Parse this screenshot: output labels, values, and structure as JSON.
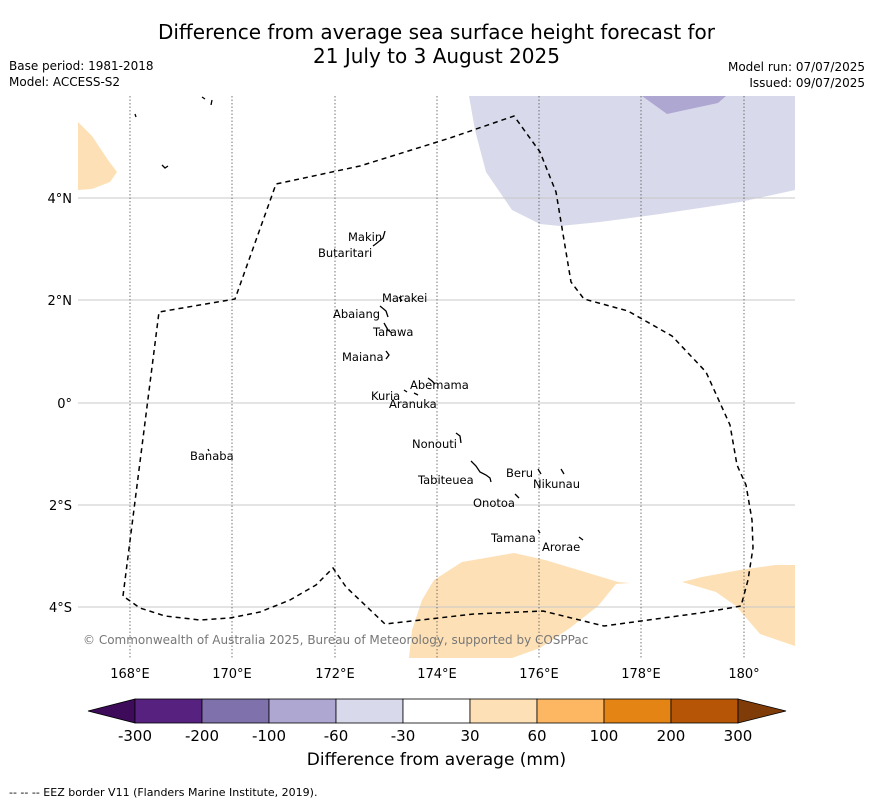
{
  "header": {
    "title_line1": "Difference from average sea surface height forecast for",
    "title_line2": "21 July to 3 August 2025",
    "base_period": "Base period: 1981-2018",
    "model": "Model: ACCESS-S2",
    "model_run": "Model run: 07/07/2025",
    "issued": "Issued: 09/07/2025"
  },
  "map": {
    "lat_labels": [
      "4°N",
      "2°N",
      "0°",
      "2°S",
      "4°S"
    ],
    "lon_labels": [
      "168°E",
      "170°E",
      "172°E",
      "174°E",
      "176°E",
      "178°E",
      "180°"
    ],
    "places": [
      "Makin",
      "Butaritari",
      "Marakei",
      "Abaiang",
      "Tarawa",
      "Maiana",
      "Abemama",
      "Kuria",
      "Aranuka",
      "Banaba",
      "Nonouti",
      "Beru",
      "Nikunau",
      "Tabiteuea",
      "Onotoa",
      "Tamana",
      "Arorae"
    ],
    "copyright": "© Commonwealth of Australia 2025, Bureau of Meteorology, supported by COSPPac",
    "colors": {
      "light_orange": "#fde0b5",
      "light_purple": "#d8d9ea",
      "mid_purple": "#aea7d1"
    }
  },
  "colorbar": {
    "title": "Difference from average (mm)",
    "ticks": [
      "-300",
      "-200",
      "-100",
      "-60",
      "-30",
      "30",
      "60",
      "100",
      "200",
      "300"
    ],
    "colors": [
      "#3e0b5a",
      "#57227f",
      "#7f71ab",
      "#aea7d1",
      "#d8d9ea",
      "#ffffff",
      "#fde0b5",
      "#fdb762",
      "#e38415",
      "#b55505",
      "#7f3b08"
    ]
  },
  "footer": {
    "eez_note": "--  --  -- EEZ border V11 (Flanders Marine Institute, 2019)."
  }
}
